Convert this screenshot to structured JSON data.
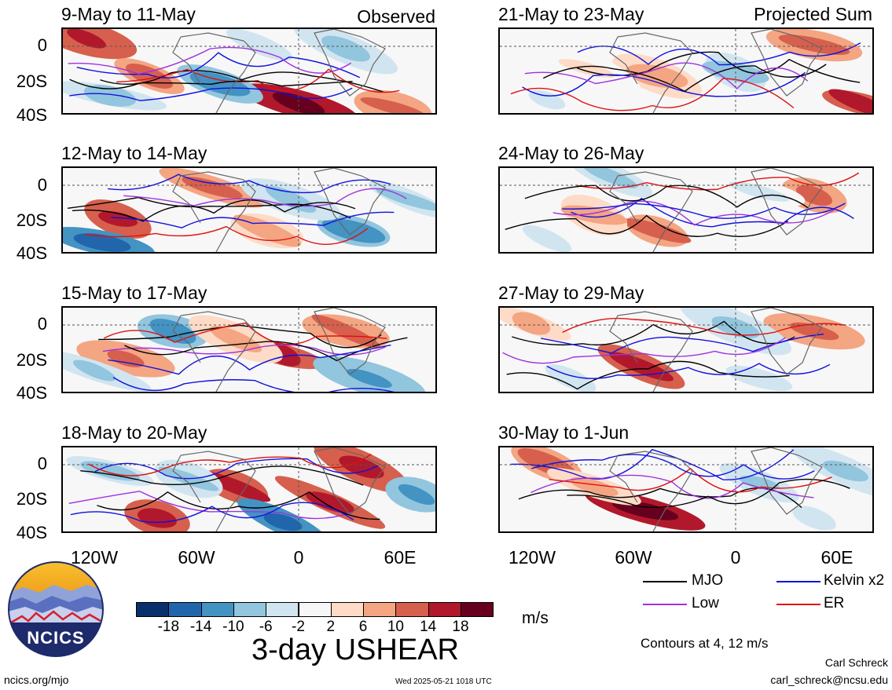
{
  "panels": [
    {
      "title": "9-May to 11-May",
      "label": "Observed"
    },
    {
      "title": "12-May to 14-May",
      "label": ""
    },
    {
      "title": "15-May to 17-May",
      "label": ""
    },
    {
      "title": "18-May to 20-May",
      "label": ""
    },
    {
      "title": "21-May to 23-May",
      "label": "Projected Sum"
    },
    {
      "title": "24-May to 26-May",
      "label": ""
    },
    {
      "title": "27-May to 29-May",
      "label": ""
    },
    {
      "title": "30-May to 1-Jun",
      "label": ""
    }
  ],
  "axes": {
    "y_ticks": [
      "0",
      "20S",
      "40S"
    ],
    "x_ticks": [
      "120W",
      "60W",
      "0",
      "60E"
    ]
  },
  "colorbar": {
    "ticks": [
      "-18",
      "-14",
      "-10",
      "-6",
      "-2",
      "2",
      "6",
      "10",
      "14",
      "18"
    ],
    "colors": [
      "#08306b",
      "#2166ac",
      "#4393c3",
      "#92c5de",
      "#d1e5f0",
      "#f7f7f7",
      "#fddbc7",
      "#f4a582",
      "#d6604d",
      "#b2182b",
      "#67001f"
    ],
    "units": "m/s",
    "title": "3-day USHEAR"
  },
  "legend": {
    "items": [
      {
        "label": "MJO",
        "color": "#000000"
      },
      {
        "label": "Kelvin x2",
        "color": "#1010e0"
      },
      {
        "label": "Low",
        "color": "#a030e0"
      },
      {
        "label": "ER",
        "color": "#e01010"
      }
    ],
    "contours_note": "Contours at 4, 12 m/s"
  },
  "logo": {
    "text": "NCICS"
  },
  "footer": {
    "url": "ncics.org/mjo",
    "timestamp": "Wed 2025-05-21 1018 UTC",
    "author": "Carl Schreck",
    "email": "carl_schreck@ncsu.edu"
  }
}
